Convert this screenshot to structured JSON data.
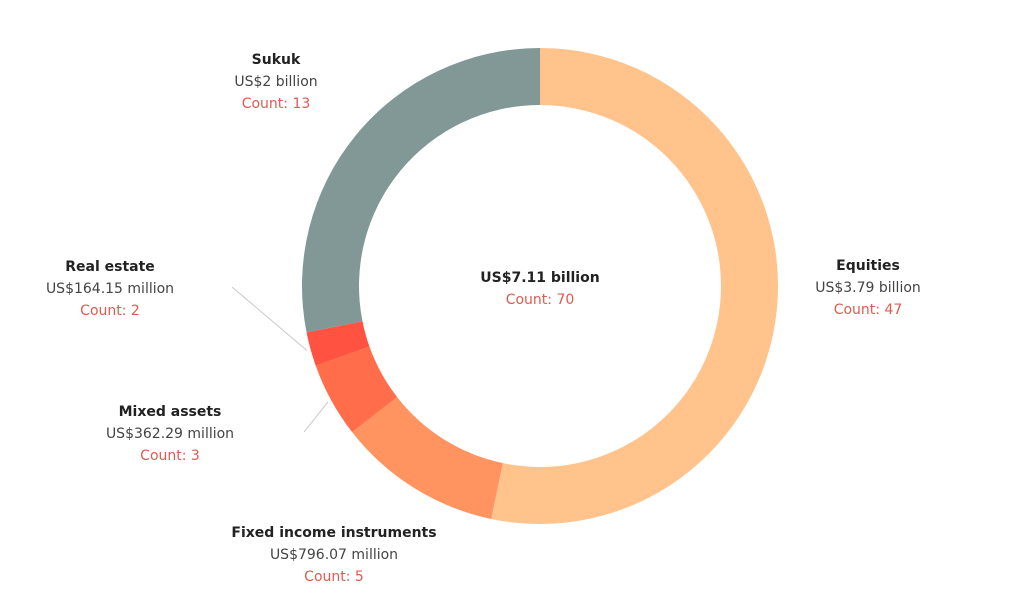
{
  "chart_data": {
    "type": "pie",
    "variant": "donut",
    "center": {
      "total_label": "US$7.11 billion",
      "count_label": "Count: 70"
    },
    "slices": [
      {
        "name": "Equities",
        "value": 3.79,
        "value_label": "US$3.79 billion",
        "count": 47,
        "count_label": "Count: 47",
        "color": "#ffc38b"
      },
      {
        "name": "Fixed income instruments",
        "value": 0.79607,
        "value_label": "US$796.07 million",
        "count": 5,
        "count_label": "Count: 5",
        "color": "#ff9461"
      },
      {
        "name": "Mixed assets",
        "value": 0.36229,
        "value_label": "US$362.29 million",
        "count": 3,
        "count_label": "Count: 3",
        "color": "#ff6d4a"
      },
      {
        "name": "Real estate",
        "value": 0.16415,
        "value_label": "US$164.15 million",
        "count": 2,
        "count_label": "Count: 2",
        "color": "#ff5240"
      },
      {
        "name": "Sukuk",
        "value": 2.0,
        "value_label": "US$2 billion",
        "count": 13,
        "count_label": "Count: 13",
        "color": "#819896"
      }
    ],
    "legend": "none"
  }
}
